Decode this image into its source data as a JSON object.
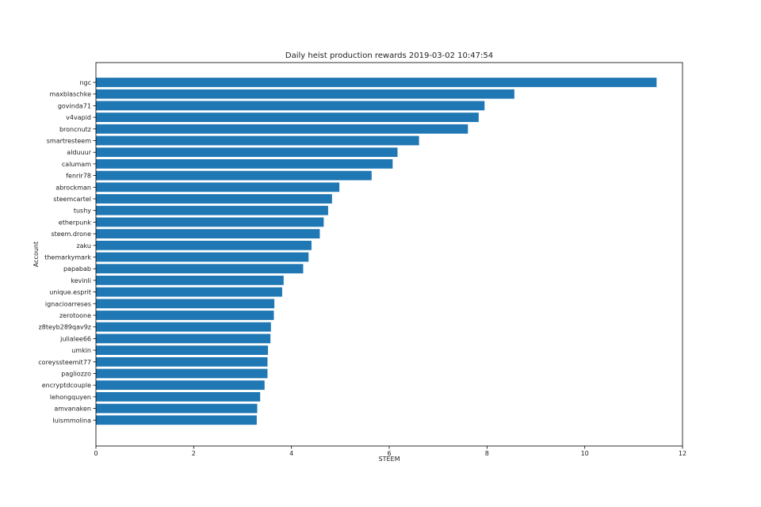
{
  "chart_data": {
    "type": "bar",
    "orientation": "horizontal",
    "title": "Daily heist production rewards 2019-03-02 10:47:54",
    "xlabel": "STEEM",
    "ylabel": "Account",
    "xlim": [
      0,
      12
    ],
    "x_ticks": [
      "0",
      "2",
      "4",
      "6",
      "8",
      "10",
      "12"
    ],
    "grid": false,
    "bar_color": "#1f77b4",
    "categories": [
      "ngc",
      "maxblaschke",
      "govinda71",
      "v4vapid",
      "broncnutz",
      "smartresteem",
      "alduuur",
      "calumam",
      "fenrir78",
      "abrockman",
      "steemcartel",
      "tushy",
      "etherpunk",
      "steem.drone",
      "zaku",
      "themarkymark",
      "papabab",
      "kevinli",
      "unique.esprit",
      "ignacioarreses",
      "zerotoone",
      "z8teyb289qav9z",
      "julialee66",
      "umkin",
      "coreyssteemit77",
      "pagliozzo",
      "encryptdcouple",
      "lehongquyen",
      "amvanaken",
      "luismmolina"
    ],
    "values": [
      11.47,
      8.56,
      7.95,
      7.83,
      7.61,
      6.61,
      6.17,
      6.07,
      5.64,
      4.98,
      4.83,
      4.75,
      4.66,
      4.58,
      4.41,
      4.35,
      4.24,
      3.84,
      3.81,
      3.65,
      3.64,
      3.58,
      3.57,
      3.52,
      3.51,
      3.51,
      3.45,
      3.36,
      3.3,
      3.29
    ]
  }
}
